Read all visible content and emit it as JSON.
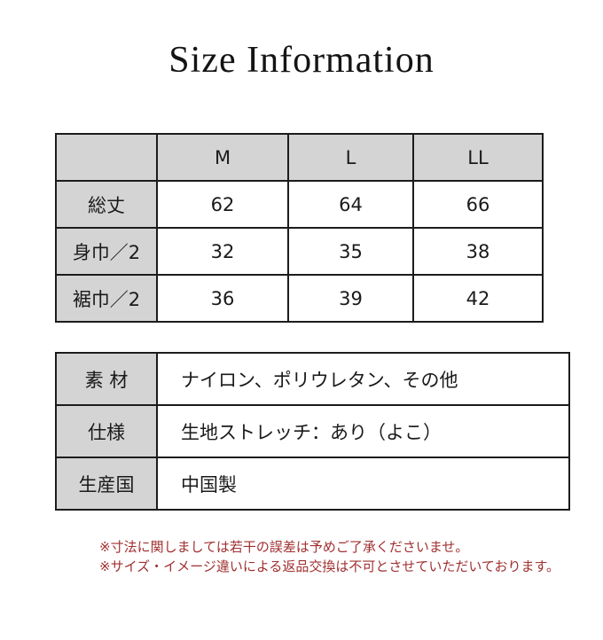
{
  "page": {
    "title": "Size Information"
  },
  "size_table": {
    "columns": [
      "",
      "M",
      "L",
      "LL"
    ],
    "rows": [
      {
        "label": "総丈",
        "values": [
          "62",
          "64",
          "66"
        ]
      },
      {
        "label": "身巾／2",
        "values": [
          "32",
          "35",
          "38"
        ]
      },
      {
        "label": "裾巾／2",
        "values": [
          "36",
          "39",
          "42"
        ]
      }
    ]
  },
  "info_table": {
    "rows": [
      {
        "label": "素 材",
        "value": "ナイロン、ポリウレタン、その他"
      },
      {
        "label": "仕様",
        "value": "生地ストレッチ：あり（よこ）"
      },
      {
        "label": "生産国",
        "value": "中国製"
      }
    ]
  },
  "notes": {
    "lines": [
      "※寸法に関しましては若干の誤差は予めご了承くださいませ。",
      "※サイズ・イメージ違いによる返品交換は不可とさせていただいております。"
    ],
    "color": "#a03030"
  },
  "colors": {
    "header_bg": "#d4d4d4",
    "border": "#1c1c1c",
    "background": "#ffffff"
  }
}
